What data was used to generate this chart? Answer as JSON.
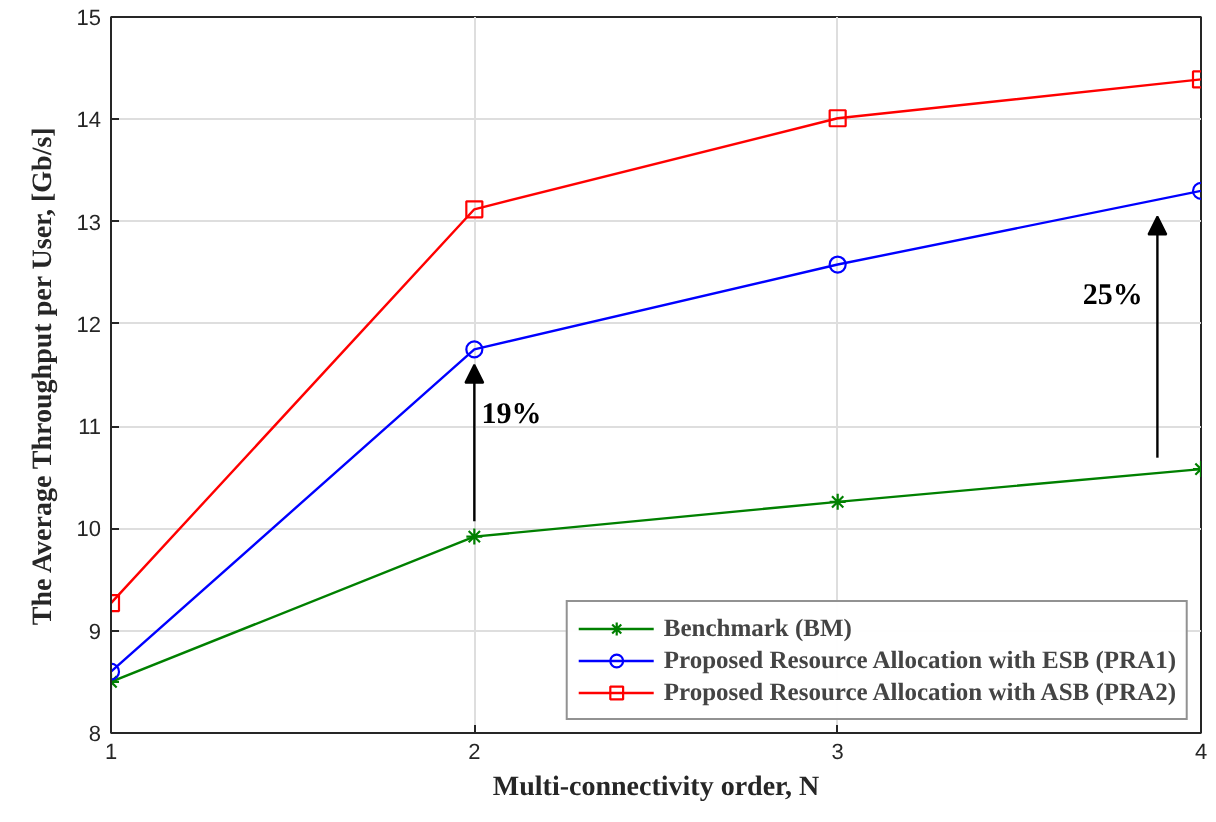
{
  "chart_data": {
    "type": "line",
    "xlabel": "Multi-connectivity order, N",
    "ylabel": "The Average Throughput per User, [Gb/s]",
    "x": [
      1,
      2,
      3,
      4
    ],
    "xlim": [
      1,
      4
    ],
    "xticks": [
      1,
      2,
      3,
      4
    ],
    "ylim": [
      8,
      15
    ],
    "yticks": [
      8,
      9,
      10,
      11,
      12,
      13,
      14,
      15
    ],
    "grid": true,
    "legend": "bottom right",
    "series": [
      {
        "name": "Benchmark (BM)",
        "color": "#008000",
        "marker": "cross",
        "values": [
          8.5,
          9.92,
          10.26,
          10.58
        ]
      },
      {
        "name": "Proposed Resource Allocation with ESB (PRA1)",
        "color": "#0000ff",
        "marker": "circle",
        "values": [
          8.6,
          11.75,
          12.58,
          13.3
        ]
      },
      {
        "name": "Proposed Resource Allocation with ASB (PRA2)",
        "color": "#ff0000",
        "marker": "square",
        "values": [
          9.27,
          13.12,
          14.01,
          14.39
        ]
      }
    ],
    "annotations": [
      {
        "text": "19%",
        "x": 2,
        "y": 11.75
      },
      {
        "text": "25%",
        "x": 3.88,
        "y": 13.2
      }
    ]
  }
}
